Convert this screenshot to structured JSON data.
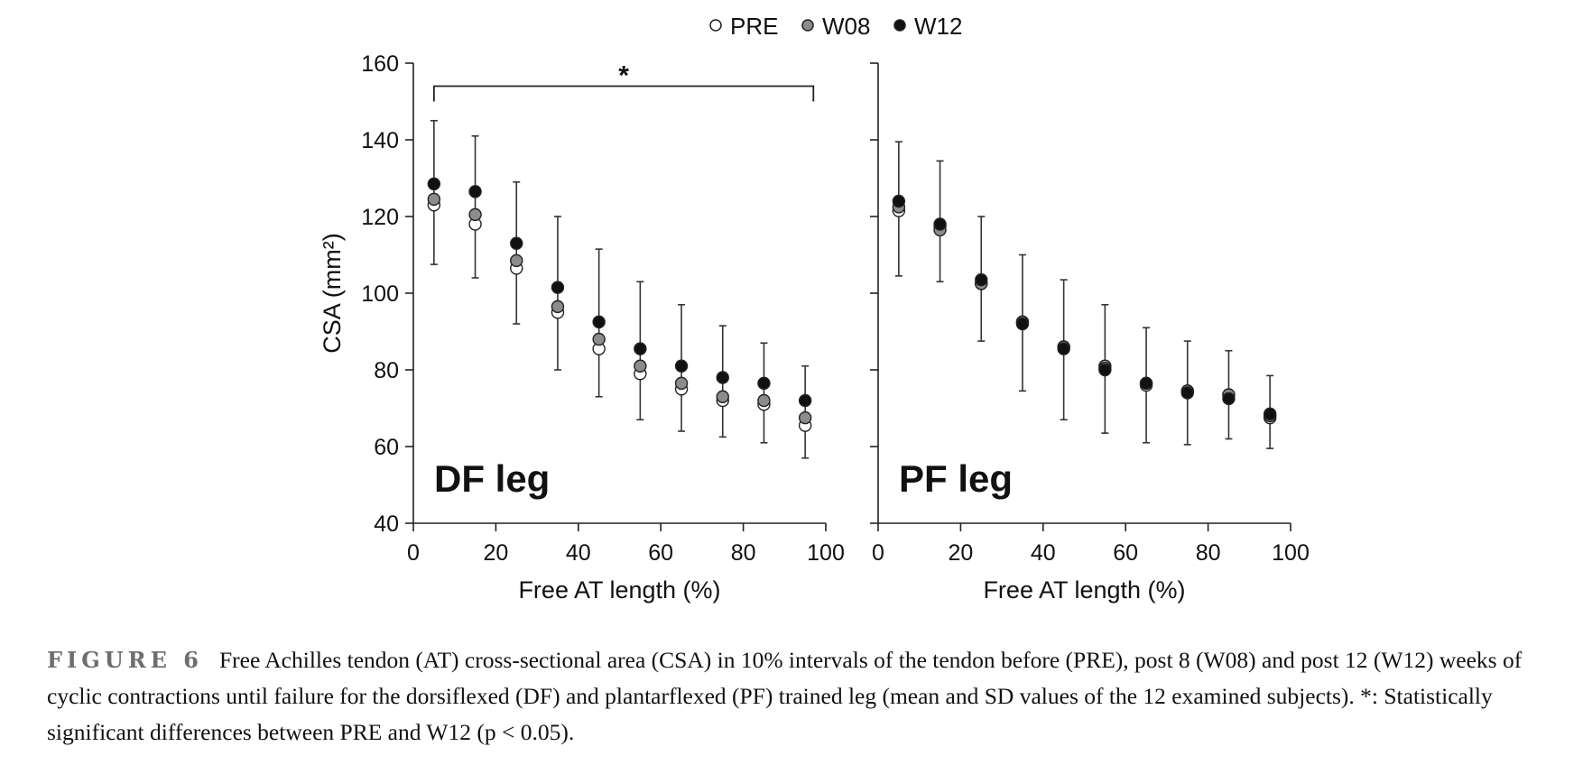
{
  "legend": [
    {
      "label": "PRE",
      "fill": "#ffffff"
    },
    {
      "label": "W08",
      "fill": "#8c8c8c"
    },
    {
      "label": "W12",
      "fill": "#111111"
    }
  ],
  "chart_data": [
    {
      "type": "scatter",
      "panel_label": "DF leg",
      "xlabel": "Free AT length (%)",
      "ylabel": "CSA (mm²)",
      "xlim": [
        0,
        100
      ],
      "ylim": [
        40,
        160
      ],
      "xticks": [
        0,
        20,
        40,
        60,
        80,
        100
      ],
      "yticks": [
        40,
        60,
        80,
        100,
        120,
        140,
        160
      ],
      "x": [
        5,
        15,
        25,
        35,
        45,
        55,
        65,
        75,
        85,
        95
      ],
      "series": [
        {
          "name": "PRE",
          "values": [
            123,
            118,
            106.5,
            95,
            85.5,
            79,
            75,
            72,
            71,
            65.5
          ]
        },
        {
          "name": "W08",
          "values": [
            124.5,
            120.5,
            108.5,
            96.5,
            88,
            81,
            76.5,
            73,
            72,
            67.5
          ]
        },
        {
          "name": "W12",
          "values": [
            128.5,
            126.5,
            113,
            101.5,
            92.5,
            85.5,
            81,
            78,
            76.5,
            72
          ]
        }
      ],
      "error_bars": [
        {
          "low": 107.5,
          "high": 145
        },
        {
          "low": 104,
          "high": 141
        },
        {
          "low": 92,
          "high": 129
        },
        {
          "low": 80,
          "high": 120
        },
        {
          "low": 73,
          "high": 111.5
        },
        {
          "low": 67,
          "high": 103
        },
        {
          "low": 64,
          "high": 97
        },
        {
          "low": 62.5,
          "high": 91.5
        },
        {
          "low": 61,
          "high": 87
        },
        {
          "low": 57,
          "high": 81
        }
      ],
      "significance": {
        "label": "*",
        "x_start": 5,
        "x_end": 97,
        "y": 154
      }
    },
    {
      "type": "scatter",
      "panel_label": "PF leg",
      "xlabel": "Free AT length (%)",
      "xlim": [
        0,
        100
      ],
      "ylim": [
        40,
        160
      ],
      "xticks": [
        0,
        20,
        40,
        60,
        80,
        100
      ],
      "x": [
        5,
        15,
        25,
        35,
        45,
        55,
        65,
        75,
        85,
        95
      ],
      "series": [
        {
          "name": "PRE",
          "values": [
            121.5,
            117.5,
            102.5,
            92.5,
            86,
            81,
            76,
            74.5,
            73.5,
            67.5
          ]
        },
        {
          "name": "W08",
          "values": [
            122.5,
            116.5,
            102.5,
            92.5,
            86,
            80.5,
            76.5,
            74.5,
            73.5,
            68
          ]
        },
        {
          "name": "W12",
          "values": [
            124,
            118,
            103.5,
            92,
            85.5,
            80,
            76.5,
            74,
            72.5,
            68.5
          ]
        }
      ],
      "error_bars": [
        {
          "low": 104.5,
          "high": 139.5
        },
        {
          "low": 103,
          "high": 134.5
        },
        {
          "low": 87.5,
          "high": 120
        },
        {
          "low": 74.5,
          "high": 110
        },
        {
          "low": 67,
          "high": 103.5
        },
        {
          "low": 63.5,
          "high": 97
        },
        {
          "low": 61,
          "high": 91
        },
        {
          "low": 60.5,
          "high": 87.5
        },
        {
          "low": 62,
          "high": 85
        },
        {
          "low": 59.5,
          "high": 78.5
        }
      ]
    }
  ],
  "caption": {
    "label": "FIGURE 6",
    "text": "Free Achilles tendon (AT) cross-sectional area (CSA) in 10% intervals of the tendon before (PRE), post 8 (W08) and post 12 (W12) weeks of cyclic contractions until failure for the dorsiflexed (DF) and plantarflexed (PF) trained leg (mean and SD values of the 12 examined subjects). *: Statistically significant differences between PRE and W12 (p < 0.05)."
  }
}
